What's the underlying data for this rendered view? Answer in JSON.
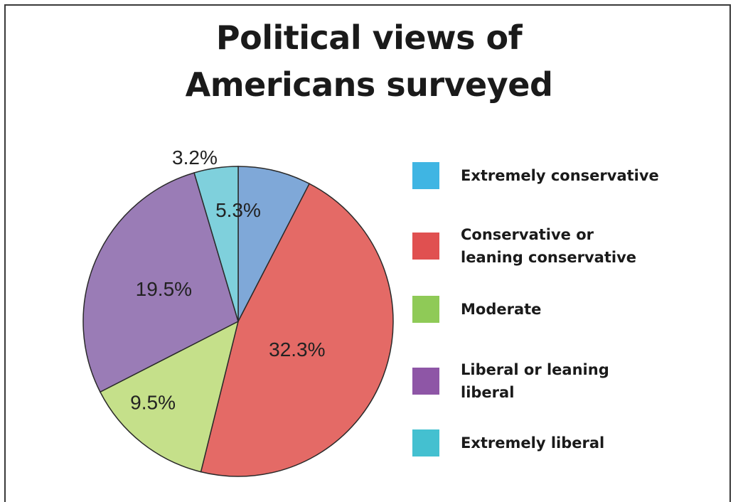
{
  "chart_data": {
    "type": "pie",
    "title": "Political views of Americans surveyed",
    "title_lines": [
      "Political views of",
      "Americans surveyed"
    ],
    "slices": [
      {
        "name": "Extremely conservative",
        "value": 5.3,
        "label": "5.3%",
        "color": "#3fb5e3",
        "slice_color": "#7fa8d8"
      },
      {
        "name": "Conservative or leaning conservative",
        "value": 32.3,
        "label": "32.3%",
        "color": "#e05050",
        "slice_color": "#e46a66"
      },
      {
        "name": "Moderate",
        "value": 9.5,
        "label": "9.5%",
        "color": "#8fca57",
        "slice_color": "#c5e08a"
      },
      {
        "name": "Liberal or leaning liberal",
        "value": 19.5,
        "label": "19.5%",
        "color": "#8e56a6",
        "slice_color": "#9a7cb6"
      },
      {
        "name": "Extremely liberal",
        "value": 3.2,
        "label": "3.2%",
        "color": "#44c0d0",
        "slice_color": "#7fd0dc"
      }
    ],
    "legend": [
      "Extremely conservative",
      "Conservative or\nleaning conservative",
      "Moderate",
      "Liberal or leaning\nliberal",
      "Extremely liberal"
    ],
    "legend_position": "right"
  }
}
